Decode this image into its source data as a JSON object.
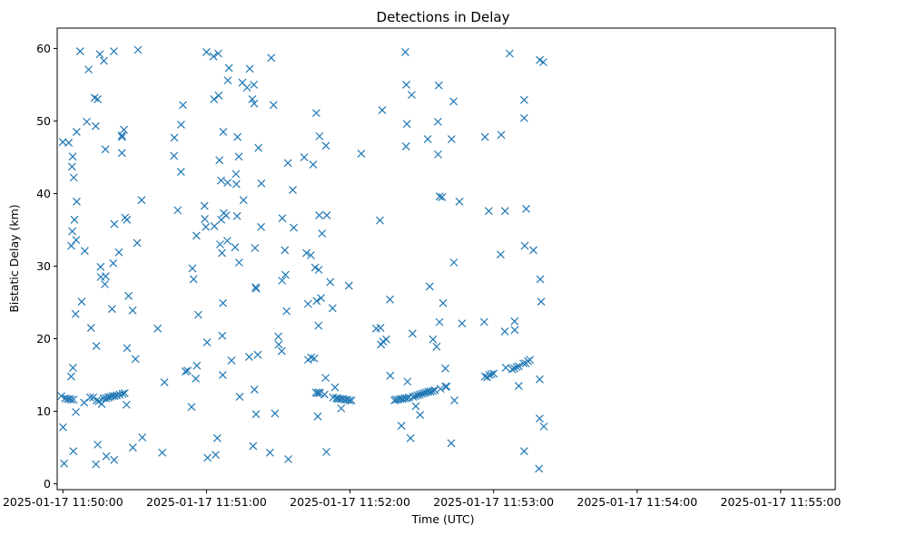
{
  "chart_data": {
    "type": "scatter",
    "title": "Detections in Delay",
    "xlabel": "Time (UTC)",
    "ylabel": "Bistatic Delay (km)",
    "marker": "x",
    "color": "#1f77b4",
    "x_unit": "minutes since 2025-01-17 11:50:00",
    "xlim": [
      -0.34,
      5.08
    ],
    "ylim": [
      -0.8,
      62.8
    ],
    "x_ticks": [
      {
        "value": -0.3,
        "label": "2025-01-17 11:50:00"
      },
      {
        "value": 0.7,
        "label": "2025-01-17 11:51:00"
      },
      {
        "value": 1.7,
        "label": "2025-01-17 11:52:00"
      },
      {
        "value": 2.7,
        "label": "2025-01-17 11:53:00"
      },
      {
        "value": 3.7,
        "label": "2025-01-17 11:54:00"
      },
      {
        "value": 4.7,
        "label": "2025-01-17 11:55:00"
      }
    ],
    "y_ticks": [
      0,
      10,
      20,
      30,
      40,
      50,
      60
    ],
    "points": [
      [
        -0.311,
        12.1
      ],
      [
        -0.301,
        47.1
      ],
      [
        -0.299,
        7.8
      ],
      [
        -0.292,
        2.8
      ],
      [
        -0.285,
        11.8
      ],
      [
        -0.27,
        11.7
      ],
      [
        -0.26,
        47.0
      ],
      [
        -0.255,
        11.7
      ],
      [
        -0.243,
        11.6
      ],
      [
        -0.243,
        14.8
      ],
      [
        -0.242,
        32.8
      ],
      [
        -0.237,
        43.7
      ],
      [
        -0.235,
        34.8
      ],
      [
        -0.232,
        45.1
      ],
      [
        -0.23,
        16.0
      ],
      [
        -0.228,
        4.5
      ],
      [
        -0.226,
        11.6
      ],
      [
        -0.225,
        42.2
      ],
      [
        -0.22,
        36.4
      ],
      [
        -0.212,
        23.4
      ],
      [
        -0.21,
        9.9
      ],
      [
        -0.208,
        33.6
      ],
      [
        -0.205,
        48.5
      ],
      [
        -0.204,
        38.9
      ],
      [
        -0.18,
        59.6
      ],
      [
        -0.17,
        25.1
      ],
      [
        -0.152,
        11.2
      ],
      [
        -0.148,
        32.1
      ],
      [
        -0.134,
        49.9
      ],
      [
        -0.121,
        57.1
      ],
      [
        -0.11,
        11.9
      ],
      [
        -0.104,
        21.5
      ],
      [
        -0.089,
        11.9
      ],
      [
        -0.079,
        53.2
      ],
      [
        -0.072,
        49.3
      ],
      [
        -0.07,
        2.7
      ],
      [
        -0.067,
        19.0
      ],
      [
        -0.065,
        11.5
      ],
      [
        -0.058,
        53.0
      ],
      [
        -0.058,
        5.4
      ],
      [
        -0.05,
        11.4
      ],
      [
        -0.043,
        59.2
      ],
      [
        -0.038,
        29.9
      ],
      [
        -0.037,
        28.5
      ],
      [
        -0.03,
        11.0
      ],
      [
        -0.017,
        11.8
      ],
      [
        -0.015,
        58.3
      ],
      [
        -0.008,
        27.5
      ],
      [
        -0.004,
        46.1
      ],
      [
        -0.002,
        28.6
      ],
      [
        0.0,
        11.8
      ],
      [
        0.002,
        3.8
      ],
      [
        0.015,
        11.9
      ],
      [
        0.03,
        12.0
      ],
      [
        0.042,
        24.1
      ],
      [
        0.045,
        12.1
      ],
      [
        0.05,
        30.4
      ],
      [
        0.055,
        59.6
      ],
      [
        0.057,
        3.3
      ],
      [
        0.058,
        35.8
      ],
      [
        0.06,
        12.1
      ],
      [
        0.075,
        12.2
      ],
      [
        0.09,
        31.9
      ],
      [
        0.095,
        12.3
      ],
      [
        0.11,
        48.0
      ],
      [
        0.111,
        45.6
      ],
      [
        0.112,
        47.8
      ],
      [
        0.115,
        12.4
      ],
      [
        0.125,
        48.8
      ],
      [
        0.13,
        12.5
      ],
      [
        0.133,
        36.7
      ],
      [
        0.143,
        10.9
      ],
      [
        0.146,
        36.4
      ],
      [
        0.147,
        18.7
      ],
      [
        0.157,
        25.9
      ],
      [
        0.186,
        23.9
      ],
      [
        0.187,
        5.0
      ],
      [
        0.205,
        17.2
      ],
      [
        0.217,
        33.2
      ],
      [
        0.223,
        59.8
      ],
      [
        0.248,
        39.1
      ],
      [
        0.253,
        6.4
      ],
      [
        0.36,
        21.4
      ],
      [
        0.392,
        4.3
      ],
      [
        0.407,
        14.0
      ],
      [
        0.474,
        45.2
      ],
      [
        0.476,
        47.7
      ],
      [
        0.5,
        37.7
      ],
      [
        0.522,
        43.0
      ],
      [
        0.523,
        49.5
      ],
      [
        0.536,
        52.2
      ],
      [
        0.554,
        15.5
      ],
      [
        0.568,
        15.6
      ],
      [
        0.596,
        10.6
      ],
      [
        0.602,
        29.7
      ],
      [
        0.61,
        28.2
      ],
      [
        0.625,
        14.5
      ],
      [
        0.63,
        34.2
      ],
      [
        0.633,
        16.3
      ],
      [
        0.643,
        23.3
      ],
      [
        0.686,
        38.3
      ],
      [
        0.688,
        36.5
      ],
      [
        0.695,
        35.4
      ],
      [
        0.7,
        59.5
      ],
      [
        0.704,
        19.5
      ],
      [
        0.707,
        3.6
      ],
      [
        0.748,
        58.9
      ],
      [
        0.752,
        53.0
      ],
      [
        0.755,
        35.5
      ],
      [
        0.764,
        4.0
      ],
      [
        0.775,
        6.3
      ],
      [
        0.782,
        59.3
      ],
      [
        0.785,
        53.5
      ],
      [
        0.79,
        44.6
      ],
      [
        0.795,
        33.0
      ],
      [
        0.802,
        41.8
      ],
      [
        0.803,
        36.4
      ],
      [
        0.808,
        31.8
      ],
      [
        0.81,
        20.4
      ],
      [
        0.813,
        15.0
      ],
      [
        0.815,
        24.9
      ],
      [
        0.817,
        48.5
      ],
      [
        0.82,
        37.3
      ],
      [
        0.837,
        37.0
      ],
      [
        0.845,
        33.5
      ],
      [
        0.847,
        41.5
      ],
      [
        0.848,
        55.6
      ],
      [
        0.856,
        57.3
      ],
      [
        0.874,
        17.0
      ],
      [
        0.899,
        32.6
      ],
      [
        0.905,
        42.7
      ],
      [
        0.908,
        41.3
      ],
      [
        0.913,
        36.9
      ],
      [
        0.916,
        47.8
      ],
      [
        0.925,
        45.1
      ],
      [
        0.927,
        30.5
      ],
      [
        0.931,
        12.0
      ],
      [
        0.95,
        55.3
      ],
      [
        0.958,
        39.1
      ],
      [
        0.982,
        54.6
      ],
      [
        0.997,
        17.5
      ],
      [
        1.001,
        57.2
      ],
      [
        1.019,
        53.0
      ],
      [
        1.025,
        5.2
      ],
      [
        1.03,
        55.0
      ],
      [
        1.032,
        52.4
      ],
      [
        1.034,
        13.0
      ],
      [
        1.038,
        32.5
      ],
      [
        1.042,
        27.1
      ],
      [
        1.045,
        9.6
      ],
      [
        1.046,
        26.9
      ],
      [
        1.057,
        17.8
      ],
      [
        1.062,
        46.3
      ],
      [
        1.08,
        35.4
      ],
      [
        1.082,
        41.4
      ],
      [
        1.142,
        4.3
      ],
      [
        1.151,
        58.7
      ],
      [
        1.167,
        52.2
      ],
      [
        1.177,
        9.7
      ],
      [
        1.2,
        20.3
      ],
      [
        1.203,
        19.2
      ],
      [
        1.224,
        18.3
      ],
      [
        1.226,
        28.0
      ],
      [
        1.228,
        36.6
      ],
      [
        1.246,
        32.2
      ],
      [
        1.25,
        28.8
      ],
      [
        1.258,
        23.8
      ],
      [
        1.267,
        44.2
      ],
      [
        1.27,
        3.4
      ],
      [
        1.301,
        40.5
      ],
      [
        1.308,
        35.3
      ],
      [
        1.381,
        45.0
      ],
      [
        1.396,
        31.8
      ],
      [
        1.407,
        24.8
      ],
      [
        1.408,
        17.1
      ],
      [
        1.427,
        31.5
      ],
      [
        1.429,
        17.4
      ],
      [
        1.443,
        44.0
      ],
      [
        1.45,
        17.3
      ],
      [
        1.457,
        29.8
      ],
      [
        1.462,
        12.6
      ],
      [
        1.465,
        51.1
      ],
      [
        1.467,
        25.2
      ],
      [
        1.472,
        12.5
      ],
      [
        1.475,
        9.3
      ],
      [
        1.48,
        21.8
      ],
      [
        1.482,
        12.6
      ],
      [
        1.482,
        29.5
      ],
      [
        1.485,
        37.0
      ],
      [
        1.487,
        47.9
      ],
      [
        1.49,
        12.5
      ],
      [
        1.498,
        25.6
      ],
      [
        1.505,
        34.5
      ],
      [
        1.522,
        12.3
      ],
      [
        1.532,
        46.6
      ],
      [
        1.53,
        14.6
      ],
      [
        1.535,
        4.4
      ],
      [
        1.538,
        37.0
      ],
      [
        1.562,
        27.8
      ],
      [
        1.578,
        24.2
      ],
      [
        1.582,
        11.9
      ],
      [
        1.595,
        13.3
      ],
      [
        1.605,
        11.8
      ],
      [
        1.61,
        11.8
      ],
      [
        1.62,
        11.7
      ],
      [
        1.635,
        11.7
      ],
      [
        1.638,
        10.4
      ],
      [
        1.65,
        11.7
      ],
      [
        1.665,
        11.6
      ],
      [
        1.68,
        11.6
      ],
      [
        1.692,
        27.3
      ],
      [
        1.695,
        11.5
      ],
      [
        1.71,
        11.5
      ],
      [
        1.778,
        45.5
      ],
      [
        1.882,
        21.4
      ],
      [
        1.908,
        36.3
      ],
      [
        1.912,
        21.5
      ],
      [
        1.916,
        19.2
      ],
      [
        1.924,
        51.5
      ],
      [
        1.93,
        19.6
      ],
      [
        1.952,
        19.9
      ],
      [
        1.978,
        25.4
      ],
      [
        1.98,
        14.9
      ],
      [
        2.01,
        11.5
      ],
      [
        2.02,
        11.6
      ],
      [
        2.035,
        11.6
      ],
      [
        2.05,
        11.7
      ],
      [
        2.058,
        8.0
      ],
      [
        2.065,
        11.7
      ],
      [
        2.08,
        11.8
      ],
      [
        2.085,
        59.5
      ],
      [
        2.09,
        46.5
      ],
      [
        2.092,
        55.0
      ],
      [
        2.095,
        11.8
      ],
      [
        2.096,
        49.6
      ],
      [
        2.1,
        14.1
      ],
      [
        2.11,
        11.9
      ],
      [
        2.121,
        6.3
      ],
      [
        2.129,
        53.6
      ],
      [
        2.135,
        20.7
      ],
      [
        2.14,
        12.0
      ],
      [
        2.155,
        12.1
      ],
      [
        2.158,
        10.7
      ],
      [
        2.17,
        12.2
      ],
      [
        2.188,
        9.5
      ],
      [
        2.185,
        12.3
      ],
      [
        2.2,
        12.4
      ],
      [
        2.215,
        12.5
      ],
      [
        2.23,
        12.6
      ],
      [
        2.241,
        47.5
      ],
      [
        2.245,
        12.7
      ],
      [
        2.255,
        27.2
      ],
      [
        2.26,
        12.7
      ],
      [
        2.275,
        12.8
      ],
      [
        2.278,
        19.9
      ],
      [
        2.29,
        12.9
      ],
      [
        2.303,
        18.9
      ],
      [
        2.312,
        49.9
      ],
      [
        2.313,
        45.4
      ],
      [
        2.318,
        54.9
      ],
      [
        2.323,
        22.3
      ],
      [
        2.324,
        39.6
      ],
      [
        2.33,
        13.1
      ],
      [
        2.341,
        39.5
      ],
      [
        2.348,
        24.9
      ],
      [
        2.364,
        15.9
      ],
      [
        2.365,
        13.4
      ],
      [
        2.372,
        13.4
      ],
      [
        2.405,
        5.6
      ],
      [
        2.407,
        47.5
      ],
      [
        2.421,
        52.7
      ],
      [
        2.423,
        30.5
      ],
      [
        2.427,
        11.5
      ],
      [
        2.462,
        38.9
      ],
      [
        2.48,
        22.1
      ],
      [
        2.635,
        22.3
      ],
      [
        2.64,
        47.8
      ],
      [
        2.64,
        14.8
      ],
      [
        2.655,
        14.7
      ],
      [
        2.666,
        37.6
      ],
      [
        2.67,
        15.0
      ],
      [
        2.685,
        15.1
      ],
      [
        2.7,
        15.2
      ],
      [
        2.749,
        31.6
      ],
      [
        2.753,
        48.1
      ],
      [
        2.778,
        21.0
      ],
      [
        2.78,
        37.6
      ],
      [
        2.785,
        16.0
      ],
      [
        2.812,
        59.3
      ],
      [
        2.83,
        15.8
      ],
      [
        2.845,
        15.9
      ],
      [
        2.846,
        22.4
      ],
      [
        2.847,
        21.2
      ],
      [
        2.86,
        16.1
      ],
      [
        2.875,
        13.5
      ],
      [
        2.875,
        16.2
      ],
      [
        2.908,
        16.6
      ],
      [
        2.913,
        52.9
      ],
      [
        2.913,
        50.4
      ],
      [
        2.913,
        4.5
      ],
      [
        2.917,
        32.8
      ],
      [
        2.925,
        16.6
      ],
      [
        2.927,
        37.9
      ],
      [
        2.94,
        16.9
      ],
      [
        2.953,
        17.1
      ],
      [
        2.977,
        32.2
      ],
      [
        3.016,
        2.1
      ],
      [
        3.021,
        9.0
      ],
      [
        3.021,
        14.4
      ],
      [
        3.022,
        58.4
      ],
      [
        3.025,
        28.2
      ],
      [
        3.031,
        25.1
      ],
      [
        3.046,
        58.1
      ],
      [
        3.05,
        7.9
      ]
    ]
  }
}
